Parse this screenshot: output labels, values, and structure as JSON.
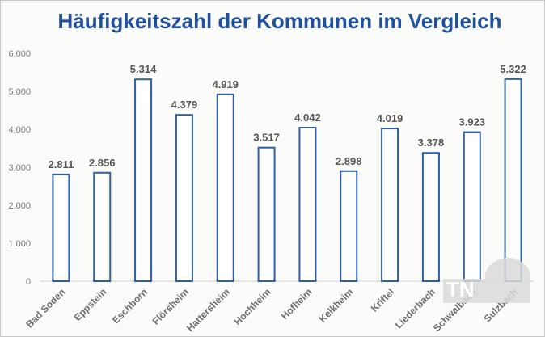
{
  "chart_data": {
    "type": "bar",
    "title": "Häufigkeitszahl der Kommunen im Vergleich",
    "categories": [
      "Bad Soden",
      "Eppstein",
      "Eschborn",
      "Flörsheim",
      "Hattersheim",
      "Hochheim",
      "Hofheim",
      "Kelkheim",
      "Kriftel",
      "Liederbach",
      "Schwalbach",
      "Sulzbach"
    ],
    "values": [
      2811,
      2856,
      5314,
      4379,
      4919,
      3517,
      4042,
      2898,
      4019,
      3378,
      3923,
      5322
    ],
    "value_labels": [
      "2.811",
      "2.856",
      "5.314",
      "4.379",
      "4.919",
      "3.517",
      "4.042",
      "2.898",
      "4.019",
      "3.378",
      "3.923",
      "5.322"
    ],
    "ylim": [
      0,
      6000
    ],
    "yticks": [
      0,
      1000,
      2000,
      3000,
      4000,
      5000,
      6000
    ],
    "ytick_labels": [
      "0",
      "1.000",
      "2.000",
      "3.000",
      "4.000",
      "5.000",
      "6.000"
    ],
    "grid": false,
    "xlabel": "",
    "ylabel": "",
    "bar_fill": "#ffffff",
    "bar_stroke": "#2e5fa3",
    "title_color": "#1f4e9c"
  },
  "watermark": {
    "text": "TN",
    "icon": "tn-logo-icon"
  }
}
